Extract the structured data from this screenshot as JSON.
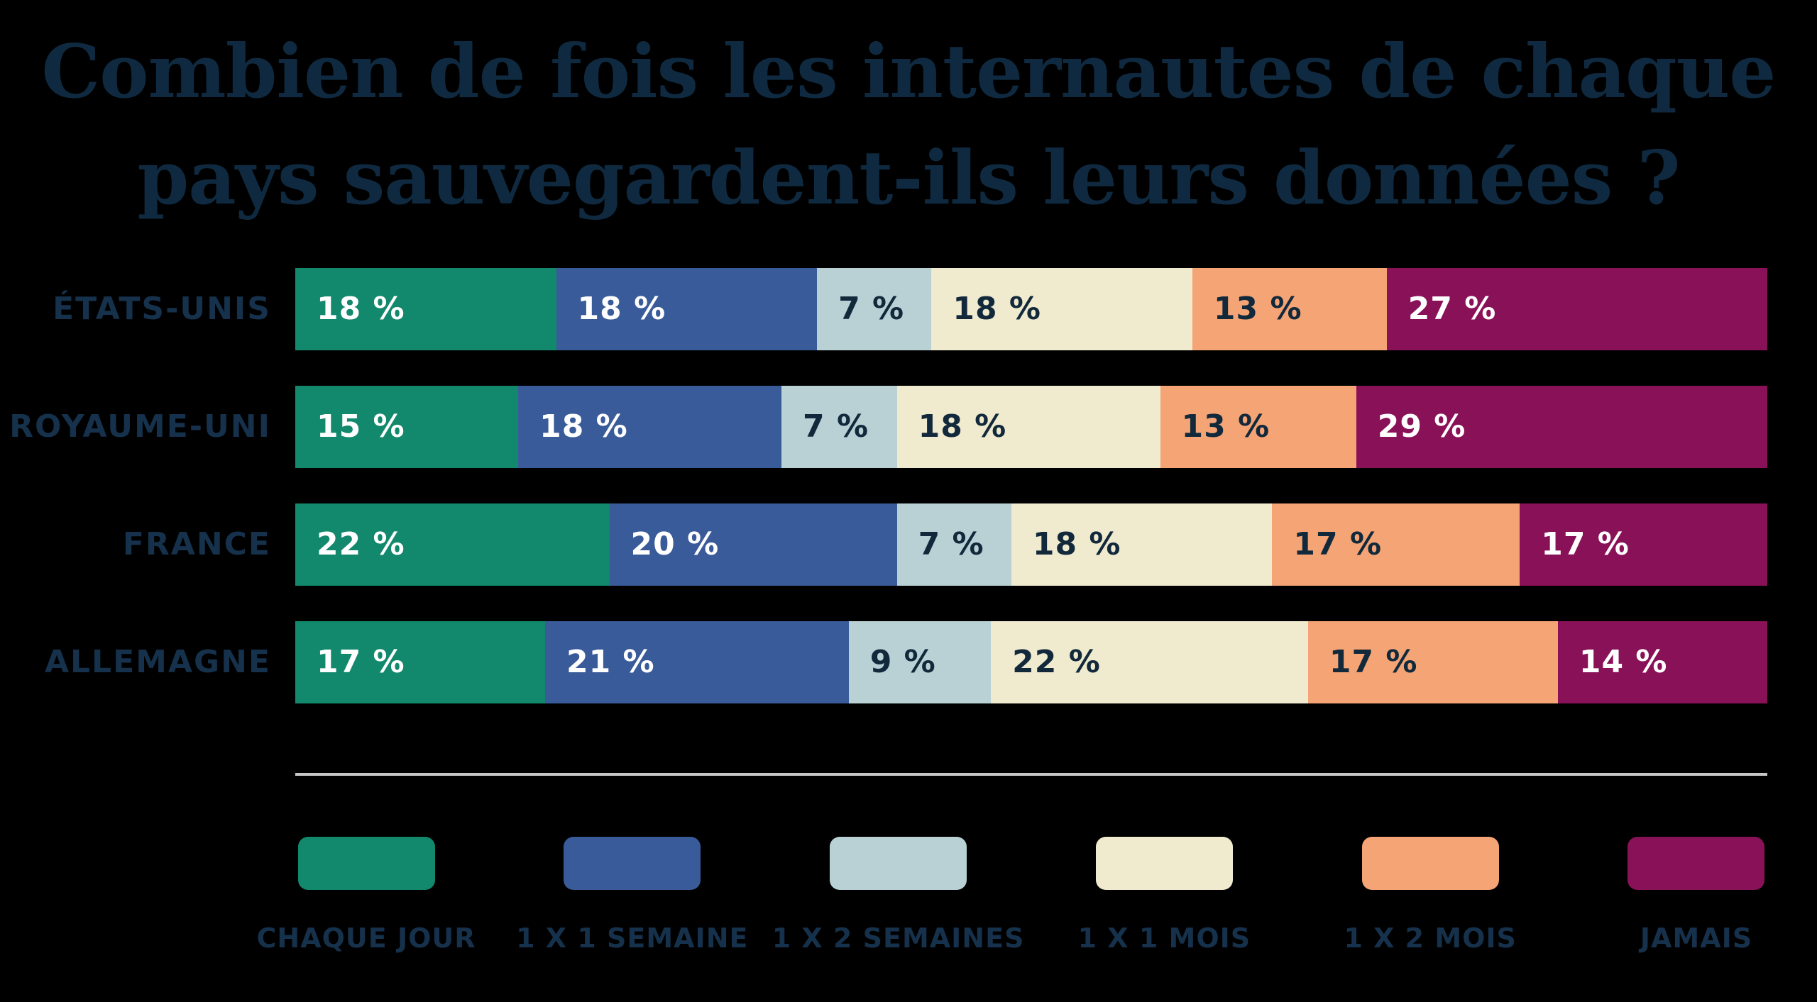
{
  "title": {
    "line1": "Combien de fois les internautes de chaque",
    "line2": "pays sauvegardent-ils leurs données ?"
  },
  "colors": {
    "background": "#000000",
    "title_text": "#0F2A40",
    "category_label_text": "#16314B",
    "value_text_light": "#FFFFFF",
    "value_text_dark": "#12293C",
    "separator_line": "#C6C6C6"
  },
  "chart_data": {
    "type": "bar",
    "orientation": "horizontal",
    "stacked": true,
    "unit": "%",
    "value_label_format": "{v} %",
    "legend_position": "bottom",
    "grid": false,
    "categories": [
      "ÉTATS-UNIS",
      "ROYAUME-UNI",
      "FRANCE",
      "ALLEMAGNE"
    ],
    "series": [
      {
        "name": "CHAQUE JOUR",
        "color": "#12886C",
        "label_text_color": "#FFFFFF",
        "values": [
          18,
          15,
          22,
          17
        ]
      },
      {
        "name": "1 X 1 SEMAINE",
        "color": "#3A5B99",
        "label_text_color": "#FFFFFF",
        "values": [
          18,
          18,
          20,
          21
        ]
      },
      {
        "name": "1 X 2 SEMAINES",
        "color": "#B9D1D5",
        "label_text_color": "#12293C",
        "values": [
          7,
          7,
          7,
          9
        ]
      },
      {
        "name": "1 X 1 MOIS",
        "color": "#F0EACF",
        "label_text_color": "#12293C",
        "values": [
          18,
          18,
          18,
          22
        ]
      },
      {
        "name": "1 X 2 MOIS",
        "color": "#F4A475",
        "label_text_color": "#12293C",
        "values": [
          13,
          13,
          17,
          17
        ]
      },
      {
        "name": "JAMAIS",
        "color": "#891157",
        "label_text_color": "#FFFFFF",
        "values": [
          27,
          29,
          17,
          14
        ]
      }
    ]
  }
}
